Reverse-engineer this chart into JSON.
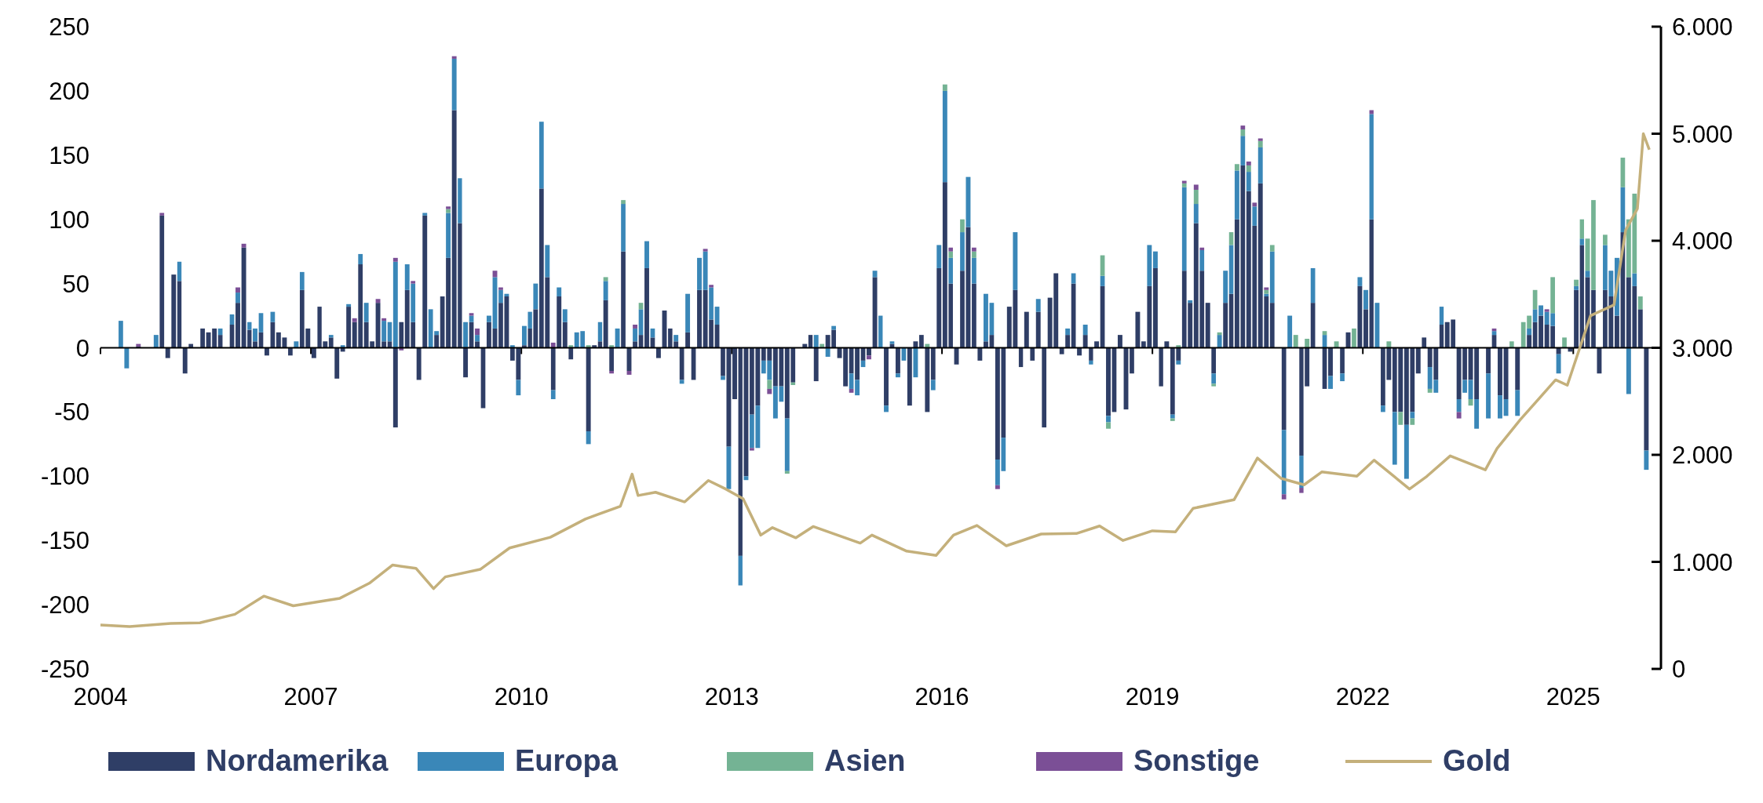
{
  "chart_data": {
    "type": "bar",
    "stacked": true,
    "legend": "bottom",
    "xlim": [
      "2004-01",
      "2026-03"
    ],
    "xticks": [
      "2004",
      "2007",
      "2010",
      "2013",
      "2016",
      "2019",
      "2022",
      "2025"
    ],
    "ylim": [
      -250,
      250
    ],
    "yticks": [
      -250,
      -200,
      -150,
      -100,
      -50,
      0,
      50,
      100,
      150,
      200,
      250
    ],
    "y2lim": [
      0,
      6000
    ],
    "y2ticks": [
      0,
      {
        "value": 1000,
        "label": "1.000"
      },
      {
        "value": 2000,
        "label": "2.000"
      },
      {
        "value": 3000,
        "label": "3.000"
      },
      {
        "value": 4000,
        "label": "4.000"
      },
      {
        "value": 5000,
        "label": "5.000"
      },
      {
        "value": 6000,
        "label": "6.000"
      }
    ],
    "x": [
      "2004-01",
      "2004-02",
      "2004-03",
      "2004-04",
      "2004-05",
      "2004-06",
      "2004-07",
      "2004-08",
      "2004-09",
      "2004-10",
      "2004-11",
      "2004-12",
      "2005-01",
      "2005-02",
      "2005-03",
      "2005-04",
      "2005-05",
      "2005-06",
      "2005-07",
      "2005-08",
      "2005-09",
      "2005-10",
      "2005-11",
      "2005-12",
      "2006-01",
      "2006-02",
      "2006-03",
      "2006-04",
      "2006-05",
      "2006-06",
      "2006-07",
      "2006-08",
      "2006-09",
      "2006-10",
      "2006-11",
      "2006-12",
      "2007-01",
      "2007-02",
      "2007-03",
      "2007-04",
      "2007-05",
      "2007-06",
      "2007-07",
      "2007-08",
      "2007-09",
      "2007-10",
      "2007-11",
      "2007-12",
      "2008-01",
      "2008-02",
      "2008-03",
      "2008-04",
      "2008-05",
      "2008-06",
      "2008-07",
      "2008-08",
      "2008-09",
      "2008-10",
      "2008-11",
      "2008-12",
      "2009-01",
      "2009-02",
      "2009-03",
      "2009-04",
      "2009-05",
      "2009-06",
      "2009-07",
      "2009-08",
      "2009-09",
      "2009-10",
      "2009-11",
      "2009-12",
      "2010-01",
      "2010-02",
      "2010-03",
      "2010-04",
      "2010-05",
      "2010-06",
      "2010-07",
      "2010-08",
      "2010-09",
      "2010-10",
      "2010-11",
      "2010-12",
      "2011-01",
      "2011-02",
      "2011-03",
      "2011-04",
      "2011-05",
      "2011-06",
      "2011-07",
      "2011-08",
      "2011-09",
      "2011-10",
      "2011-11",
      "2011-12",
      "2012-01",
      "2012-02",
      "2012-03",
      "2012-04",
      "2012-05",
      "2012-06",
      "2012-07",
      "2012-08",
      "2012-09",
      "2012-10",
      "2012-11",
      "2012-12",
      "2013-01",
      "2013-02",
      "2013-03",
      "2013-04",
      "2013-05",
      "2013-06",
      "2013-07",
      "2013-08",
      "2013-09",
      "2013-10",
      "2013-11",
      "2013-12",
      "2014-01",
      "2014-02",
      "2014-03",
      "2014-04",
      "2014-05",
      "2014-06",
      "2014-07",
      "2014-08",
      "2014-09",
      "2014-10",
      "2014-11",
      "2014-12",
      "2015-01",
      "2015-02",
      "2015-03",
      "2015-04",
      "2015-05",
      "2015-06",
      "2015-07",
      "2015-08",
      "2015-09",
      "2015-10",
      "2015-11",
      "2015-12",
      "2016-01",
      "2016-02",
      "2016-03",
      "2016-04",
      "2016-05",
      "2016-06",
      "2016-07",
      "2016-08",
      "2016-09",
      "2016-10",
      "2016-11",
      "2016-12",
      "2017-01",
      "2017-02",
      "2017-03",
      "2017-04",
      "2017-05",
      "2017-06",
      "2017-07",
      "2017-08",
      "2017-09",
      "2017-10",
      "2017-11",
      "2017-12",
      "2018-01",
      "2018-02",
      "2018-03",
      "2018-04",
      "2018-05",
      "2018-06",
      "2018-07",
      "2018-08",
      "2018-09",
      "2018-10",
      "2018-11",
      "2018-12",
      "2019-01",
      "2019-02",
      "2019-03",
      "2019-04",
      "2019-05",
      "2019-06",
      "2019-07",
      "2019-08",
      "2019-09",
      "2019-10",
      "2019-11",
      "2019-12",
      "2020-01",
      "2020-02",
      "2020-03",
      "2020-04",
      "2020-05",
      "2020-06",
      "2020-07",
      "2020-08",
      "2020-09",
      "2020-10",
      "2020-11",
      "2020-12",
      "2021-01",
      "2021-02",
      "2021-03",
      "2021-04",
      "2021-05",
      "2021-06",
      "2021-07",
      "2021-08",
      "2021-09",
      "2021-10",
      "2021-11",
      "2021-12",
      "2022-01",
      "2022-02",
      "2022-03",
      "2022-04",
      "2022-05",
      "2022-06",
      "2022-07",
      "2022-08",
      "2022-09",
      "2022-10",
      "2022-11",
      "2022-12",
      "2023-01",
      "2023-02",
      "2023-03",
      "2023-04",
      "2023-05",
      "2023-06",
      "2023-07",
      "2023-08",
      "2023-09",
      "2023-10",
      "2023-11",
      "2023-12",
      "2024-01",
      "2024-02",
      "2024-03",
      "2024-04",
      "2024-05",
      "2024-06",
      "2024-07",
      "2024-08",
      "2024-09",
      "2024-10",
      "2024-11",
      "2024-12",
      "2025-01",
      "2025-02",
      "2025-03",
      "2025-04",
      "2025-05",
      "2025-06",
      "2025-07",
      "2025-08",
      "2025-09",
      "2025-10",
      "2025-11",
      "2025-12",
      "2026-01"
    ],
    "series": [
      {
        "name": "Nordamerika",
        "color": "#2f3e66",
        "values": [
          0,
          0,
          0,
          0,
          0,
          0,
          1,
          0,
          0,
          0,
          103,
          -8,
          57,
          52,
          -20,
          3,
          0,
          15,
          12,
          15,
          10,
          0,
          18,
          35,
          78,
          14,
          5,
          12,
          -6,
          20,
          12,
          8,
          -6,
          0,
          45,
          15,
          -8,
          32,
          5,
          8,
          -24,
          -3,
          32,
          20,
          65,
          20,
          5,
          35,
          5,
          5,
          -62,
          20,
          45,
          20,
          -25,
          103,
          0,
          10,
          40,
          70,
          185,
          97,
          -23,
          20,
          5,
          -47,
          20,
          15,
          35,
          40,
          -10,
          -25,
          2,
          15,
          30,
          124,
          55,
          -33,
          40,
          20,
          -9,
          0,
          0,
          -65,
          2,
          5,
          37,
          -18,
          0,
          75,
          -18,
          5,
          10,
          62,
          8,
          -8,
          29,
          15,
          5,
          -25,
          12,
          -25,
          45,
          45,
          22,
          18,
          -22,
          -77,
          -40,
          -162,
          -100,
          -52,
          -45,
          -10,
          -10,
          -30,
          -30,
          -55,
          -27,
          0,
          3,
          10,
          -26,
          0,
          10,
          14,
          -8,
          -30,
          -20,
          -25,
          -10,
          -6,
          55,
          0,
          -45,
          3,
          -20,
          0,
          -45,
          5,
          10,
          -50,
          -25,
          62,
          129,
          50,
          -13,
          60,
          94,
          50,
          -10,
          5,
          10,
          -87,
          -70,
          32,
          45,
          -15,
          28,
          -10,
          28,
          -62,
          39,
          58,
          -5,
          10,
          50,
          -6,
          10,
          -10,
          5,
          48,
          -53,
          -50,
          10,
          -48,
          -20,
          28,
          5,
          48,
          62,
          -30,
          5,
          -52,
          -10,
          60,
          35,
          97,
          60,
          35,
          -20,
          0,
          35,
          42,
          100,
          142,
          122,
          95,
          128,
          40,
          35,
          0,
          -64,
          0,
          0,
          -84,
          -30,
          35,
          0,
          -32,
          -22,
          0,
          -20,
          12,
          0,
          48,
          30,
          100,
          0,
          -45,
          -25,
          -50,
          -50,
          -60,
          -50,
          -20,
          8,
          -15,
          -25,
          18,
          20,
          22,
          -40,
          -25,
          -25,
          -40,
          0,
          -20,
          10,
          -37,
          -40,
          0,
          -33,
          0,
          10,
          20,
          25,
          18,
          17,
          -5,
          0,
          -3,
          45,
          80,
          55,
          45,
          -20,
          45,
          40,
          25,
          90,
          55,
          48,
          30,
          -80
        ]
      },
      {
        "name": "Europa",
        "color": "#3a87b8",
        "values": [
          0,
          0,
          0,
          21,
          -16,
          0,
          0,
          0,
          0,
          10,
          0,
          0,
          0,
          15,
          0,
          0,
          0,
          0,
          0,
          0,
          5,
          0,
          8,
          8,
          0,
          6,
          10,
          15,
          0,
          8,
          0,
          0,
          0,
          5,
          14,
          0,
          0,
          0,
          0,
          2,
          0,
          2,
          2,
          0,
          8,
          15,
          0,
          0,
          16,
          15,
          67,
          0,
          20,
          30,
          0,
          2,
          30,
          3,
          0,
          35,
          40,
          35,
          20,
          5,
          5,
          0,
          5,
          40,
          10,
          2,
          2,
          -12,
          15,
          13,
          20,
          52,
          25,
          -7,
          7,
          10,
          0,
          12,
          13,
          -10,
          0,
          15,
          15,
          0,
          15,
          37,
          0,
          10,
          20,
          21,
          7,
          0,
          0,
          0,
          5,
          -3,
          30,
          0,
          25,
          30,
          25,
          14,
          -3,
          -33,
          0,
          -23,
          -3,
          -26,
          -33,
          -10,
          -15,
          -25,
          -12,
          -41,
          0,
          0,
          0,
          0,
          10,
          0,
          -7,
          3,
          0,
          0,
          -12,
          -12,
          -5,
          0,
          5,
          25,
          -5,
          2,
          -3,
          -10,
          0,
          -23,
          0,
          0,
          -8,
          18,
          71,
          20,
          0,
          30,
          39,
          20,
          0,
          37,
          25,
          -20,
          -26,
          0,
          45,
          0,
          0,
          0,
          10,
          0,
          0,
          0,
          0,
          5,
          8,
          0,
          8,
          -3,
          0,
          8,
          -5,
          0,
          0,
          0,
          0,
          0,
          0,
          32,
          13,
          0,
          0,
          -3,
          -3,
          65,
          2,
          15,
          16,
          0,
          -8,
          10,
          25,
          38,
          38,
          23,
          15,
          15,
          28,
          2,
          40,
          0,
          -50,
          25,
          0,
          -25,
          0,
          27,
          0,
          10,
          -10,
          0,
          -6,
          0,
          0,
          7,
          15,
          82,
          35,
          -5,
          0,
          -41,
          0,
          -42,
          -5,
          0,
          0,
          -17,
          -10,
          14,
          0,
          0,
          -10,
          -10,
          -15,
          -23,
          0,
          -35,
          3,
          -18,
          -13,
          0,
          -20,
          0,
          5,
          10,
          8,
          10,
          10,
          -15,
          0,
          0,
          3,
          5,
          5,
          0,
          0,
          35,
          20,
          45,
          35,
          -36,
          10,
          0,
          -15
        ]
      },
      {
        "name": "Asien",
        "color": "#74b394",
        "values": [
          0,
          0,
          0,
          0,
          0,
          0,
          0,
          0,
          0,
          0,
          0,
          0,
          0,
          0,
          0,
          0,
          0,
          0,
          0,
          0,
          0,
          0,
          0,
          0,
          0,
          0,
          0,
          0,
          0,
          0,
          0,
          0,
          0,
          0,
          0,
          0,
          0,
          0,
          0,
          0,
          0,
          0,
          0,
          0,
          0,
          0,
          0,
          0,
          0,
          0,
          0,
          0,
          0,
          0,
          0,
          0,
          0,
          0,
          0,
          3,
          0,
          0,
          0,
          0,
          0,
          0,
          0,
          0,
          0,
          0,
          0,
          0,
          0,
          0,
          0,
          0,
          0,
          0,
          0,
          0,
          2,
          0,
          0,
          2,
          0,
          0,
          3,
          2,
          0,
          3,
          0,
          0,
          5,
          0,
          0,
          0,
          0,
          0,
          0,
          0,
          0,
          0,
          0,
          0,
          0,
          0,
          0,
          0,
          0,
          0,
          0,
          0,
          0,
          0,
          -7,
          0,
          0,
          -2,
          -2,
          0,
          0,
          0,
          0,
          3,
          0,
          0,
          0,
          0,
          0,
          0,
          0,
          0,
          0,
          0,
          0,
          0,
          0,
          0,
          0,
          0,
          0,
          3,
          0,
          0,
          5,
          5,
          0,
          10,
          0,
          5,
          0,
          0,
          0,
          0,
          0,
          0,
          0,
          0,
          0,
          0,
          0,
          0,
          0,
          0,
          0,
          0,
          0,
          0,
          0,
          0,
          0,
          16,
          -5,
          0,
          0,
          0,
          0,
          0,
          0,
          0,
          0,
          0,
          0,
          -2,
          2,
          3,
          0,
          11,
          0,
          0,
          -2,
          2,
          0,
          10,
          5,
          5,
          5,
          0,
          5,
          3,
          5,
          0,
          0,
          0,
          10,
          0,
          7,
          0,
          0,
          3,
          0,
          5,
          0,
          0,
          15,
          0,
          0,
          0,
          0,
          0,
          5,
          0,
          -10,
          0,
          -5,
          0,
          0,
          -3,
          0,
          0,
          0,
          0,
          0,
          0,
          -5,
          0,
          0,
          0,
          0,
          0,
          0,
          5,
          0,
          20,
          10,
          15,
          0,
          0,
          28,
          0,
          8,
          0,
          5,
          15,
          25,
          70,
          0,
          8,
          0,
          0,
          23,
          45,
          62,
          10,
          0
        ]
      },
      {
        "name": "Sonstige",
        "color": "#7b4f96",
        "values": [
          0,
          0,
          0,
          0,
          0,
          0,
          2,
          0,
          0,
          0,
          2,
          0,
          0,
          0,
          0,
          0,
          0,
          0,
          0,
          0,
          0,
          0,
          0,
          4,
          3,
          0,
          0,
          0,
          0,
          0,
          0,
          0,
          0,
          0,
          0,
          0,
          0,
          0,
          0,
          0,
          0,
          0,
          0,
          3,
          0,
          0,
          0,
          3,
          2,
          0,
          3,
          -2,
          0,
          2,
          0,
          0,
          0,
          0,
          0,
          2,
          2,
          0,
          0,
          2,
          5,
          0,
          0,
          5,
          2,
          0,
          0,
          0,
          0,
          0,
          0,
          0,
          0,
          4,
          0,
          0,
          0,
          0,
          0,
          0,
          0,
          0,
          0,
          -2,
          0,
          0,
          -3,
          3,
          0,
          0,
          0,
          0,
          0,
          0,
          0,
          0,
          0,
          0,
          0,
          2,
          2,
          0,
          0,
          0,
          0,
          0,
          0,
          -2,
          0,
          0,
          -4,
          0,
          0,
          0,
          0,
          0,
          0,
          0,
          0,
          0,
          0,
          0,
          0,
          0,
          -3,
          0,
          0,
          -3,
          0,
          0,
          0,
          0,
          0,
          0,
          0,
          0,
          0,
          0,
          0,
          0,
          0,
          3,
          0,
          0,
          0,
          3,
          0,
          0,
          0,
          -3,
          0,
          0,
          0,
          0,
          0,
          0,
          0,
          0,
          0,
          0,
          0,
          0,
          0,
          0,
          0,
          0,
          0,
          0,
          0,
          0,
          0,
          0,
          0,
          0,
          0,
          0,
          0,
          0,
          0,
          0,
          0,
          2,
          0,
          4,
          2,
          0,
          0,
          0,
          0,
          0,
          0,
          3,
          3,
          3,
          2,
          2,
          0,
          0,
          -4,
          0,
          0,
          -4,
          0,
          0,
          0,
          0,
          0,
          0,
          0,
          0,
          0,
          0,
          0,
          3,
          0,
          0,
          0,
          0,
          0,
          0,
          0,
          0,
          0,
          0,
          0,
          0,
          0,
          0,
          -5,
          0,
          0,
          0,
          0,
          0,
          2,
          0,
          0,
          0,
          0,
          0,
          0,
          0,
          0,
          2,
          0,
          0,
          0,
          0,
          0,
          0,
          0,
          0,
          0,
          0,
          0,
          0,
          0,
          0,
          0,
          0,
          0
        ]
      },
      {
        "name": "Gold",
        "type": "line",
        "axis": "y2",
        "color": "#c4b07b",
        "x": [
          "2004-01",
          "2004-06",
          "2005-01",
          "2005-06",
          "2005-12",
          "2006-05",
          "2006-10",
          "2007-06",
          "2007-11",
          "2008-03",
          "2008-07",
          "2008-10",
          "2008-12",
          "2009-06",
          "2009-11",
          "2010-06",
          "2010-12",
          "2011-06",
          "2011-08",
          "2011-09",
          "2011-12",
          "2012-05",
          "2012-09",
          "2012-12",
          "2013-03",
          "2013-06",
          "2013-08",
          "2013-12",
          "2014-03",
          "2014-11",
          "2015-01",
          "2015-07",
          "2015-12",
          "2016-03",
          "2016-07",
          "2016-12",
          "2017-06",
          "2017-12",
          "2018-04",
          "2018-08",
          "2019-01",
          "2019-05",
          "2019-08",
          "2020-03",
          "2020-07",
          "2020-11",
          "2021-03",
          "2021-06",
          "2021-12",
          "2022-03",
          "2022-09",
          "2022-12",
          "2023-04",
          "2023-10",
          "2023-12",
          "2024-04",
          "2024-10",
          "2024-12",
          "2025-04",
          "2025-08",
          "2025-10",
          "2025-12",
          "2026-01",
          "2026-02"
        ],
        "values": [
          410,
          395,
          425,
          430,
          510,
          680,
          590,
          660,
          800,
          970,
          940,
          750,
          860,
          930,
          1130,
          1230,
          1400,
          1520,
          1820,
          1620,
          1650,
          1560,
          1760,
          1680,
          1590,
          1250,
          1320,
          1225,
          1330,
          1175,
          1250,
          1100,
          1060,
          1250,
          1340,
          1150,
          1260,
          1265,
          1335,
          1200,
          1290,
          1280,
          1500,
          1580,
          1970,
          1780,
          1720,
          1840,
          1800,
          1950,
          1680,
          1800,
          1990,
          1860,
          2060,
          2330,
          2700,
          2650,
          3300,
          3400,
          4100,
          4300,
          5000,
          4850
        ]
      }
    ]
  }
}
